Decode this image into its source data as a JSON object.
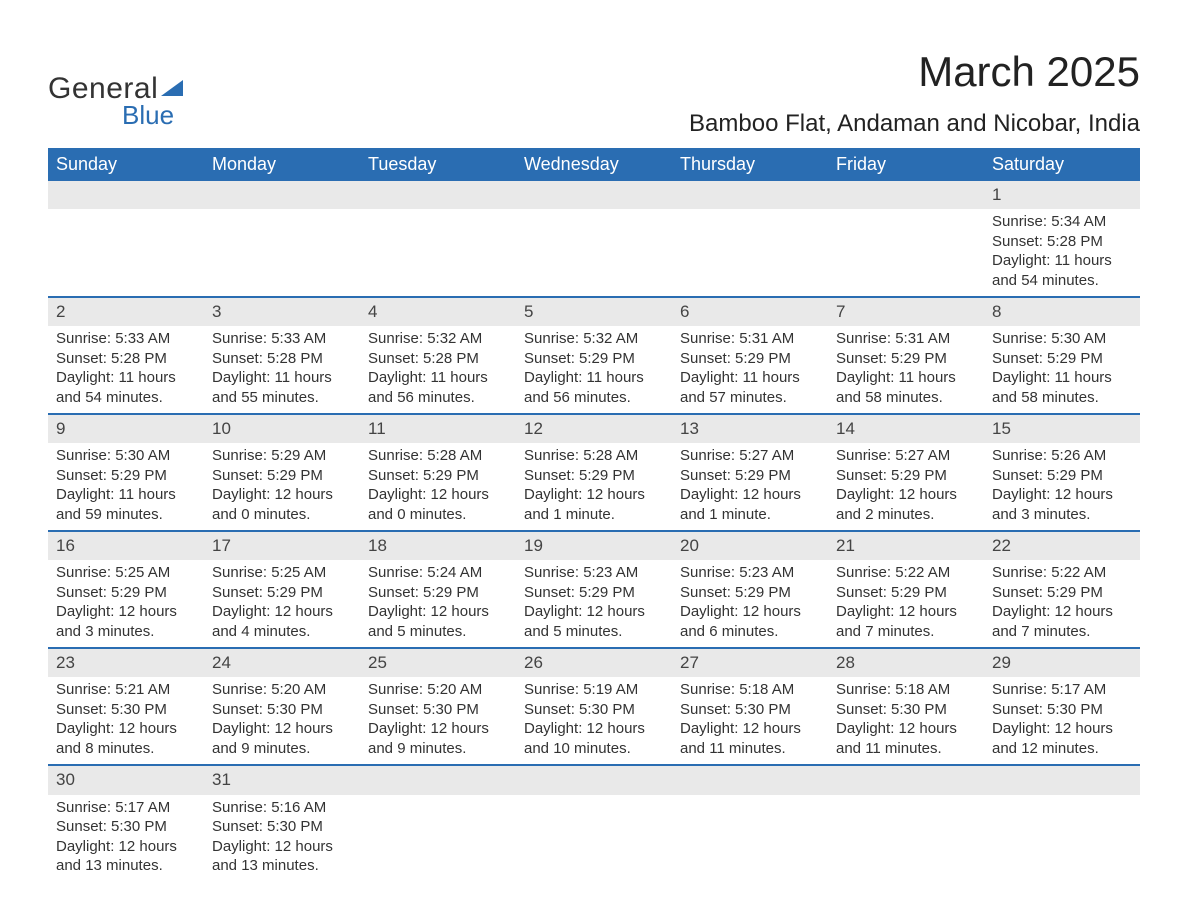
{
  "brand": {
    "word1": "General",
    "word2": "Blue",
    "accent_color": "#2a6db2"
  },
  "header": {
    "title": "March 2025",
    "location": "Bamboo Flat, Andaman and Nicobar, India"
  },
  "colors": {
    "header_bg": "#2a6db2",
    "header_text": "#ffffff",
    "daynum_bg": "#e9e9e9",
    "row_divider": "#2a6db2",
    "body_text": "#333333",
    "page_bg": "#ffffff"
  },
  "fonts": {
    "title_size_pt": 32,
    "location_size_pt": 18,
    "th_size_pt": 14,
    "cell_size_pt": 11
  },
  "calendar": {
    "columns": [
      "Sunday",
      "Monday",
      "Tuesday",
      "Wednesday",
      "Thursday",
      "Friday",
      "Saturday"
    ],
    "weeks": [
      [
        null,
        null,
        null,
        null,
        null,
        null,
        {
          "n": "1",
          "sunrise": "Sunrise: 5:34 AM",
          "sunset": "Sunset: 5:28 PM",
          "day1": "Daylight: 11 hours",
          "day2": "and 54 minutes."
        }
      ],
      [
        {
          "n": "2",
          "sunrise": "Sunrise: 5:33 AM",
          "sunset": "Sunset: 5:28 PM",
          "day1": "Daylight: 11 hours",
          "day2": "and 54 minutes."
        },
        {
          "n": "3",
          "sunrise": "Sunrise: 5:33 AM",
          "sunset": "Sunset: 5:28 PM",
          "day1": "Daylight: 11 hours",
          "day2": "and 55 minutes."
        },
        {
          "n": "4",
          "sunrise": "Sunrise: 5:32 AM",
          "sunset": "Sunset: 5:28 PM",
          "day1": "Daylight: 11 hours",
          "day2": "and 56 minutes."
        },
        {
          "n": "5",
          "sunrise": "Sunrise: 5:32 AM",
          "sunset": "Sunset: 5:29 PM",
          "day1": "Daylight: 11 hours",
          "day2": "and 56 minutes."
        },
        {
          "n": "6",
          "sunrise": "Sunrise: 5:31 AM",
          "sunset": "Sunset: 5:29 PM",
          "day1": "Daylight: 11 hours",
          "day2": "and 57 minutes."
        },
        {
          "n": "7",
          "sunrise": "Sunrise: 5:31 AM",
          "sunset": "Sunset: 5:29 PM",
          "day1": "Daylight: 11 hours",
          "day2": "and 58 minutes."
        },
        {
          "n": "8",
          "sunrise": "Sunrise: 5:30 AM",
          "sunset": "Sunset: 5:29 PM",
          "day1": "Daylight: 11 hours",
          "day2": "and 58 minutes."
        }
      ],
      [
        {
          "n": "9",
          "sunrise": "Sunrise: 5:30 AM",
          "sunset": "Sunset: 5:29 PM",
          "day1": "Daylight: 11 hours",
          "day2": "and 59 minutes."
        },
        {
          "n": "10",
          "sunrise": "Sunrise: 5:29 AM",
          "sunset": "Sunset: 5:29 PM",
          "day1": "Daylight: 12 hours",
          "day2": "and 0 minutes."
        },
        {
          "n": "11",
          "sunrise": "Sunrise: 5:28 AM",
          "sunset": "Sunset: 5:29 PM",
          "day1": "Daylight: 12 hours",
          "day2": "and 0 minutes."
        },
        {
          "n": "12",
          "sunrise": "Sunrise: 5:28 AM",
          "sunset": "Sunset: 5:29 PM",
          "day1": "Daylight: 12 hours",
          "day2": "and 1 minute."
        },
        {
          "n": "13",
          "sunrise": "Sunrise: 5:27 AM",
          "sunset": "Sunset: 5:29 PM",
          "day1": "Daylight: 12 hours",
          "day2": "and 1 minute."
        },
        {
          "n": "14",
          "sunrise": "Sunrise: 5:27 AM",
          "sunset": "Sunset: 5:29 PM",
          "day1": "Daylight: 12 hours",
          "day2": "and 2 minutes."
        },
        {
          "n": "15",
          "sunrise": "Sunrise: 5:26 AM",
          "sunset": "Sunset: 5:29 PM",
          "day1": "Daylight: 12 hours",
          "day2": "and 3 minutes."
        }
      ],
      [
        {
          "n": "16",
          "sunrise": "Sunrise: 5:25 AM",
          "sunset": "Sunset: 5:29 PM",
          "day1": "Daylight: 12 hours",
          "day2": "and 3 minutes."
        },
        {
          "n": "17",
          "sunrise": "Sunrise: 5:25 AM",
          "sunset": "Sunset: 5:29 PM",
          "day1": "Daylight: 12 hours",
          "day2": "and 4 minutes."
        },
        {
          "n": "18",
          "sunrise": "Sunrise: 5:24 AM",
          "sunset": "Sunset: 5:29 PM",
          "day1": "Daylight: 12 hours",
          "day2": "and 5 minutes."
        },
        {
          "n": "19",
          "sunrise": "Sunrise: 5:23 AM",
          "sunset": "Sunset: 5:29 PM",
          "day1": "Daylight: 12 hours",
          "day2": "and 5 minutes."
        },
        {
          "n": "20",
          "sunrise": "Sunrise: 5:23 AM",
          "sunset": "Sunset: 5:29 PM",
          "day1": "Daylight: 12 hours",
          "day2": "and 6 minutes."
        },
        {
          "n": "21",
          "sunrise": "Sunrise: 5:22 AM",
          "sunset": "Sunset: 5:29 PM",
          "day1": "Daylight: 12 hours",
          "day2": "and 7 minutes."
        },
        {
          "n": "22",
          "sunrise": "Sunrise: 5:22 AM",
          "sunset": "Sunset: 5:29 PM",
          "day1": "Daylight: 12 hours",
          "day2": "and 7 minutes."
        }
      ],
      [
        {
          "n": "23",
          "sunrise": "Sunrise: 5:21 AM",
          "sunset": "Sunset: 5:30 PM",
          "day1": "Daylight: 12 hours",
          "day2": "and 8 minutes."
        },
        {
          "n": "24",
          "sunrise": "Sunrise: 5:20 AM",
          "sunset": "Sunset: 5:30 PM",
          "day1": "Daylight: 12 hours",
          "day2": "and 9 minutes."
        },
        {
          "n": "25",
          "sunrise": "Sunrise: 5:20 AM",
          "sunset": "Sunset: 5:30 PM",
          "day1": "Daylight: 12 hours",
          "day2": "and 9 minutes."
        },
        {
          "n": "26",
          "sunrise": "Sunrise: 5:19 AM",
          "sunset": "Sunset: 5:30 PM",
          "day1": "Daylight: 12 hours",
          "day2": "and 10 minutes."
        },
        {
          "n": "27",
          "sunrise": "Sunrise: 5:18 AM",
          "sunset": "Sunset: 5:30 PM",
          "day1": "Daylight: 12 hours",
          "day2": "and 11 minutes."
        },
        {
          "n": "28",
          "sunrise": "Sunrise: 5:18 AM",
          "sunset": "Sunset: 5:30 PM",
          "day1": "Daylight: 12 hours",
          "day2": "and 11 minutes."
        },
        {
          "n": "29",
          "sunrise": "Sunrise: 5:17 AM",
          "sunset": "Sunset: 5:30 PM",
          "day1": "Daylight: 12 hours",
          "day2": "and 12 minutes."
        }
      ],
      [
        {
          "n": "30",
          "sunrise": "Sunrise: 5:17 AM",
          "sunset": "Sunset: 5:30 PM",
          "day1": "Daylight: 12 hours",
          "day2": "and 13 minutes."
        },
        {
          "n": "31",
          "sunrise": "Sunrise: 5:16 AM",
          "sunset": "Sunset: 5:30 PM",
          "day1": "Daylight: 12 hours",
          "day2": "and 13 minutes."
        },
        null,
        null,
        null,
        null,
        null
      ]
    ]
  }
}
